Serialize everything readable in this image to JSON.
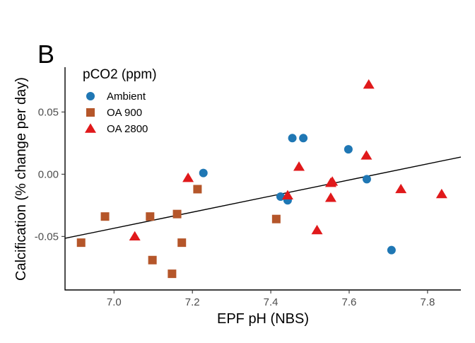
{
  "panel_label": "B",
  "chart_data": {
    "type": "scatter",
    "title": "",
    "xlabel": "EPF pH (NBS)",
    "ylabel": "Calcification (% change per day)",
    "xlim": [
      6.875,
      7.885
    ],
    "ylim": [
      -0.093,
      0.086
    ],
    "xticks": [
      7.0,
      7.2,
      7.4,
      7.6,
      7.8
    ],
    "yticks": [
      -0.05,
      0.0,
      0.05
    ],
    "xtick_labels": [
      "7.0",
      "7.2",
      "7.4",
      "7.6",
      "7.8"
    ],
    "ytick_labels": [
      "-0.05",
      "0.00",
      "0.05"
    ],
    "grid": false,
    "legend": {
      "title": "pCO2 (ppm)",
      "position": "top-left"
    },
    "series": [
      {
        "name": "Ambient",
        "marker": "circle",
        "color": "#1f77b4",
        "points": [
          [
            7.228,
            0.001
          ],
          [
            7.425,
            -0.018
          ],
          [
            7.443,
            -0.021
          ],
          [
            7.455,
            0.029
          ],
          [
            7.483,
            0.029
          ],
          [
            7.598,
            0.02
          ],
          [
            7.645,
            -0.004
          ],
          [
            7.708,
            -0.061
          ]
        ]
      },
      {
        "name": "OA 900",
        "marker": "square",
        "color": "#b5562a",
        "points": [
          [
            6.916,
            -0.055
          ],
          [
            6.977,
            -0.034
          ],
          [
            7.092,
            -0.034
          ],
          [
            7.098,
            -0.069
          ],
          [
            7.148,
            -0.08
          ],
          [
            7.161,
            -0.032
          ],
          [
            7.173,
            -0.055
          ],
          [
            7.213,
            -0.012
          ],
          [
            7.414,
            -0.036
          ]
        ]
      },
      {
        "name": "OA 2800",
        "marker": "triangle",
        "color": "#e0191b",
        "points": [
          [
            7.053,
            -0.05
          ],
          [
            7.189,
            -0.003
          ],
          [
            7.443,
            -0.017
          ],
          [
            7.472,
            0.006
          ],
          [
            7.518,
            -0.045
          ],
          [
            7.553,
            -0.019
          ],
          [
            7.553,
            -0.007
          ],
          [
            7.557,
            -0.006
          ],
          [
            7.644,
            0.015
          ],
          [
            7.65,
            0.072
          ],
          [
            7.732,
            -0.012
          ],
          [
            7.836,
            -0.016
          ]
        ]
      }
    ],
    "regression_line": {
      "color": "#000000",
      "x": [
        6.875,
        7.885
      ],
      "y": [
        -0.0515,
        0.0138
      ]
    }
  }
}
